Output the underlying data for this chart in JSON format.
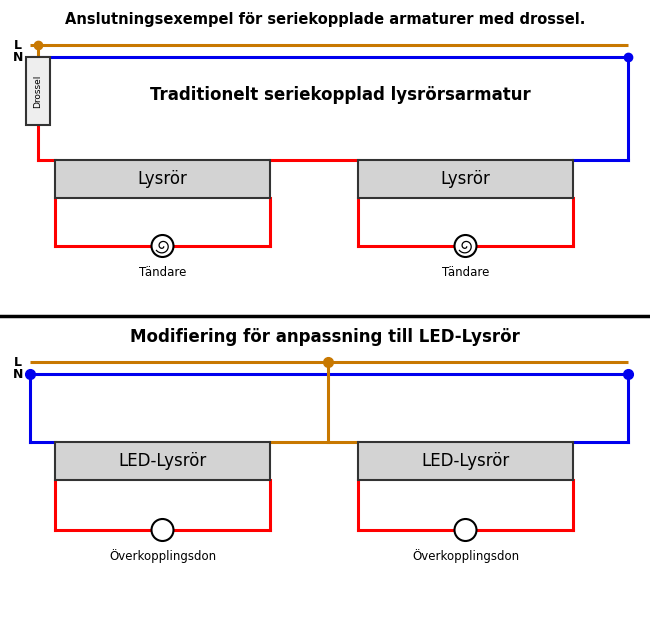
{
  "title_top": "Anslutningsexempel för seriekopplade armaturer med drossel.",
  "subtitle_top": "Traditionelt seriekopplad lysrörsarmatur",
  "title_bottom": "Modifiering för anpassning till LED-Lysrör",
  "label_L": "L",
  "label_N": "N",
  "label_drossel": "Drossel",
  "label_lysror1": "Lysrör",
  "label_lysror2": "Lysrör",
  "label_tandare1": "Tändare",
  "label_tandare2": "Tändare",
  "label_led1": "LED-Lysrör",
  "label_led2": "LED-Lysrör",
  "label_overkoppling1": "Överkopplingsdon",
  "label_overkoppling2": "Överkopplingsdon",
  "color_L": "#c87800",
  "color_N": "#0000ee",
  "color_circuit": "#ff0000",
  "color_box_fill": "#d3d3d3",
  "color_box_edge": "#333333",
  "color_drossel_fill": "#eeeeee",
  "color_bg": "#ffffff",
  "color_title": "#000000"
}
